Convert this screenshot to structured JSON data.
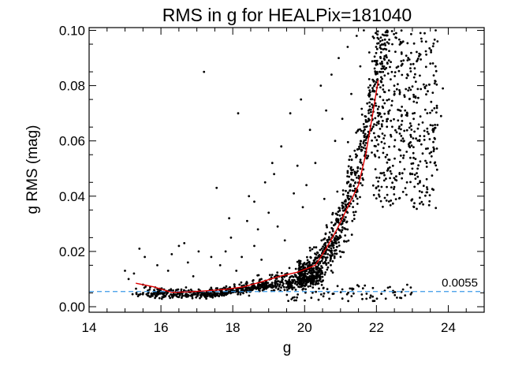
{
  "chart_data": {
    "type": "scatter",
    "title": "RMS in g for HEALPix=181040",
    "xlabel": "g",
    "ylabel": "g RMS (mag)",
    "xlim": [
      14,
      25
    ],
    "ylim": [
      -0.002,
      0.101
    ],
    "x_ticks": [
      14,
      16,
      18,
      20,
      22,
      24
    ],
    "x_tick_labels": [
      "14",
      "16",
      "18",
      "20",
      "22",
      "24"
    ],
    "y_ticks": [
      0.0,
      0.02,
      0.04,
      0.06,
      0.08,
      0.1
    ],
    "y_tick_labels": [
      "0.00",
      "0.02",
      "0.04",
      "0.06",
      "0.08",
      "0.10"
    ],
    "grid": false,
    "legend": "none",
    "reference_line": {
      "y": 0.0055,
      "label": "0.0055",
      "color": "#3b9ae8",
      "style": "dashed"
    },
    "median_curve": {
      "color": "#e00000",
      "x": [
        15.3,
        15.8,
        16.3,
        16.8,
        17.3,
        17.8,
        18.3,
        18.8,
        19.3,
        19.8,
        20.3,
        20.6,
        20.9,
        21.2,
        21.5,
        21.7,
        21.9,
        22.05
      ],
      "y": [
        0.0085,
        0.0072,
        0.0052,
        0.0054,
        0.0058,
        0.0063,
        0.0072,
        0.009,
        0.011,
        0.0125,
        0.015,
        0.021,
        0.028,
        0.036,
        0.044,
        0.055,
        0.07,
        0.082
      ]
    },
    "scatter": {
      "color": "#000000",
      "description": "Approx. 1700 stars; RMS floor near 0.004-0.006 rising steeply above g~20.5",
      "points": [
        [
          15.0,
          0.013
        ],
        [
          15.1,
          0.01
        ],
        [
          15.25,
          0.012
        ],
        [
          15.4,
          0.021
        ],
        [
          15.5,
          0.008
        ],
        [
          15.55,
          0.018
        ],
        [
          15.7,
          0.007
        ],
        [
          15.9,
          0.015
        ],
        [
          15.95,
          0.006
        ],
        [
          16.2,
          0.013
        ],
        [
          16.3,
          0.019
        ],
        [
          16.5,
          0.022
        ],
        [
          16.65,
          0.023
        ],
        [
          16.75,
          0.016
        ],
        [
          16.9,
          0.011
        ],
        [
          17.05,
          0.02
        ],
        [
          17.2,
          0.085
        ],
        [
          17.4,
          0.018
        ],
        [
          17.55,
          0.043
        ],
        [
          17.65,
          0.015
        ],
        [
          17.8,
          0.02
        ],
        [
          17.9,
          0.032
        ],
        [
          17.95,
          0.025
        ],
        [
          18.1,
          0.013
        ],
        [
          18.15,
          0.07
        ],
        [
          18.25,
          0.018
        ],
        [
          18.4,
          0.031
        ],
        [
          18.45,
          0.04
        ],
        [
          18.6,
          0.022
        ],
        [
          18.6,
          0.038
        ],
        [
          18.7,
          0.028
        ],
        [
          18.8,
          0.017
        ],
        [
          18.9,
          0.045
        ],
        [
          19.0,
          0.034
        ],
        [
          19.1,
          0.052
        ],
        [
          19.15,
          0.048
        ],
        [
          19.25,
          0.029
        ],
        [
          19.35,
          0.058
        ],
        [
          19.45,
          0.024
        ],
        [
          19.6,
          0.07
        ],
        [
          19.7,
          0.041
        ],
        [
          19.8,
          0.051
        ],
        [
          19.9,
          0.075
        ],
        [
          19.95,
          0.036
        ],
        [
          20.05,
          0.044
        ],
        [
          20.15,
          0.064
        ],
        [
          20.3,
          0.052
        ],
        [
          20.45,
          0.08
        ],
        [
          20.55,
          0.039
        ],
        [
          20.6,
          0.071
        ],
        [
          20.75,
          0.084
        ],
        [
          20.85,
          0.06
        ],
        [
          20.95,
          0.09
        ],
        [
          21.05,
          0.068
        ],
        [
          21.2,
          0.094
        ],
        [
          21.3,
          0.077
        ],
        [
          21.45,
          0.098
        ],
        [
          21.55,
          0.087
        ],
        [
          21.65,
          0.1
        ],
        [
          21.8,
          0.092
        ],
        [
          22.35,
          0.075
        ],
        [
          22.5,
          0.058
        ],
        [
          22.7,
          0.069
        ],
        [
          22.85,
          0.045
        ],
        [
          23.05,
          0.083
        ],
        [
          23.2,
          0.06
        ],
        [
          23.3,
          0.037
        ],
        [
          23.4,
          0.052
        ],
        [
          23.5,
          0.088
        ],
        [
          23.55,
          0.071
        ],
        [
          23.6,
          0.064
        ],
        [
          23.7,
          0.096
        ],
        [
          23.8,
          0.069
        ],
        [
          23.85,
          0.079
        ],
        [
          22.55,
          0.099
        ],
        [
          22.95,
          0.101
        ],
        [
          23.25,
          0.097
        ],
        [
          23.65,
          0.1
        ],
        [
          21.95,
          0.055
        ],
        [
          22.15,
          0.066
        ]
      ]
    }
  }
}
